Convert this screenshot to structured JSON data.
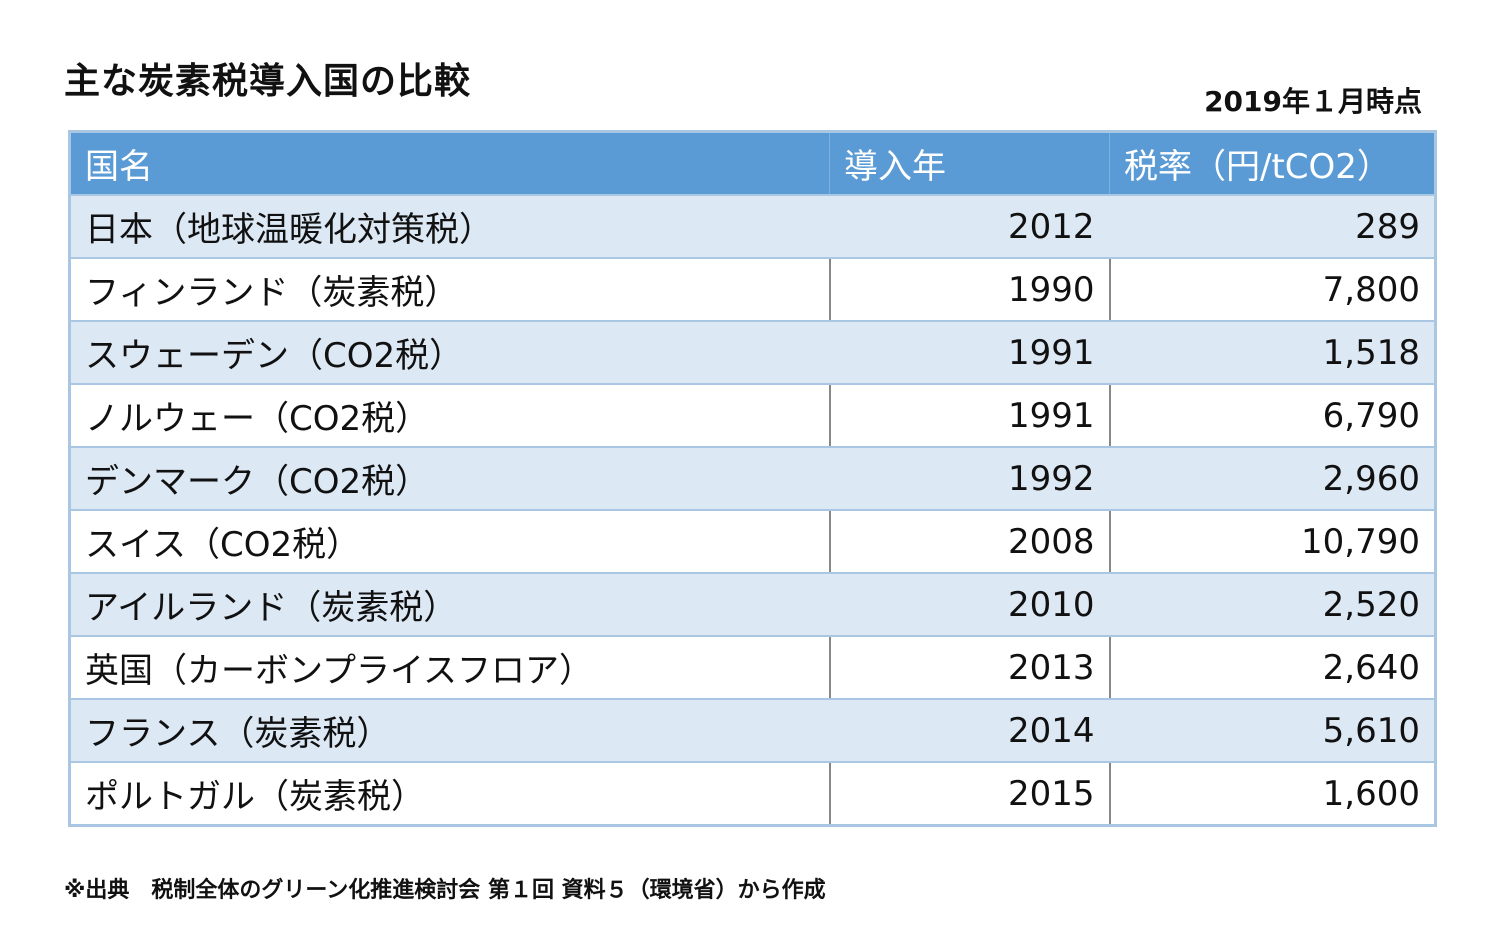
{
  "title": "主な炭素税導入国の比較",
  "as_of": "2019年１月時点",
  "table": {
    "headers": [
      "国名",
      "導入年",
      "税率（円/tCO2）"
    ],
    "rows": [
      [
        "日本（地球温暖化対策税）",
        "2012",
        "289"
      ],
      [
        "フィンランド（炭素税）",
        "1990",
        "7,800"
      ],
      [
        "スウェーデン（CO2税）",
        "1991",
        "1,518"
      ],
      [
        "ノルウェー（CO2税）",
        "1991",
        "6,790"
      ],
      [
        "デンマーク（CO2税）",
        "1992",
        "2,960"
      ],
      [
        "スイス（CO2税）",
        "2008",
        "10,790"
      ],
      [
        "アイルランド（炭素税）",
        "2010",
        "2,520"
      ],
      [
        "英国（カーボンプライスフロア）",
        "2013",
        "2,640"
      ],
      [
        "フランス（炭素税）",
        "2014",
        "5,610"
      ],
      [
        "ポルトガル（炭素税）",
        "2015",
        "1,600"
      ]
    ]
  },
  "source": "※出典　税制全体のグリーン化推進検討会 第１回 資料５（環境省）から作成"
}
